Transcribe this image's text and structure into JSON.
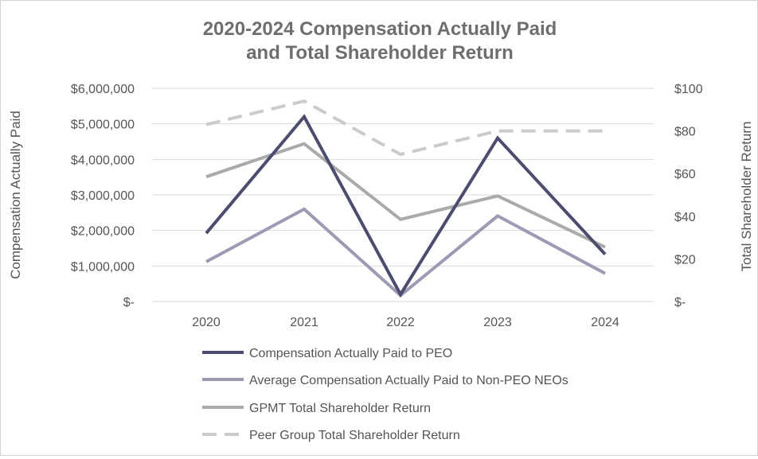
{
  "chart_data": {
    "type": "line",
    "title_line1": "2020-2024 Compensation Actually Paid",
    "title_line2": "and Total Shareholder Return",
    "categories": [
      "2020",
      "2021",
      "2022",
      "2023",
      "2024"
    ],
    "ylabel_left": "Compensation Actually Paid",
    "ylabel_right": "Total Shareholder Return",
    "ylim_left": [
      0,
      6000000
    ],
    "ylim_right": [
      0,
      100
    ],
    "yticks_left": [
      "$-",
      "$1,000,000",
      "$2,000,000",
      "$3,000,000",
      "$4,000,000",
      "$5,000,000",
      "$6,000,000"
    ],
    "yticks_right": [
      "$-",
      "$20",
      "$40",
      "$60",
      "$80",
      "$100"
    ],
    "grid": true,
    "legend_position": "bottom",
    "series": [
      {
        "name": "Compensation Actually Paid to PEO",
        "axis": "left",
        "values": [
          1920000,
          5200000,
          200000,
          4600000,
          1330000
        ],
        "color": "#4c4d6e",
        "dashed": false
      },
      {
        "name": "Average Compensation Actually Paid to Non-PEO NEOs",
        "axis": "left",
        "values": [
          1120000,
          2600000,
          170000,
          2410000,
          790000
        ],
        "color": "#9d9ab4",
        "dashed": false
      },
      {
        "name": "GPMT Total Shareholder Return",
        "axis": "right",
        "values": [
          58.5,
          74,
          38.5,
          49.5,
          25.5
        ],
        "color": "#aaaaaa",
        "dashed": false
      },
      {
        "name": "Peer Group Total Shareholder Return",
        "axis": "right",
        "values": [
          83,
          94,
          69,
          80,
          80
        ],
        "color": "#cbcbcb",
        "dashed": true
      }
    ]
  }
}
